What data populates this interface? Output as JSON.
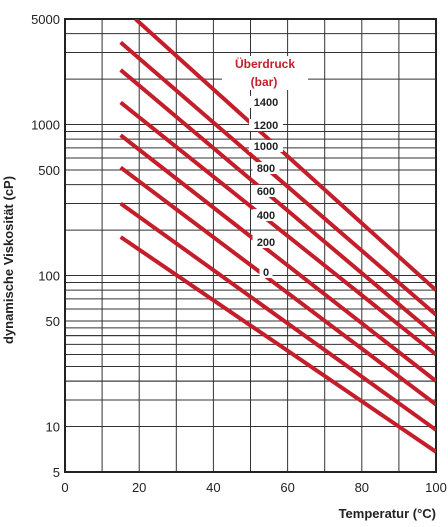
{
  "chart_data": {
    "type": "line",
    "title": "",
    "xlabel": "Temperatur (°C)",
    "ylabel": "dynamische Viskosität (cP)",
    "xlim": [
      0,
      100
    ],
    "ylim": [
      5,
      5000
    ],
    "yscale": "log",
    "grid": true,
    "x_ticks": [
      "0",
      "20",
      "40",
      "60",
      "80",
      "100"
    ],
    "y_ticks": [
      {
        "value": 5000,
        "label": "5000"
      },
      {
        "value": 1000,
        "label": "1000"
      },
      {
        "value": 500,
        "label": "500"
      },
      {
        "value": 100,
        "label": "100"
      },
      {
        "value": 50,
        "label": "50"
      },
      {
        "value": 10,
        "label": "10"
      },
      {
        "value": 5,
        "label": "5"
      }
    ],
    "annotation": {
      "line1": "Überdruck",
      "line2": "(bar)",
      "color": "#c41e2a"
    },
    "line_color": "#c41e2a",
    "series": [
      {
        "name": "0",
        "x": [
          15,
          100
        ],
        "y": [
          180,
          6.8
        ]
      },
      {
        "name": "200",
        "x": [
          15,
          100
        ],
        "y": [
          300,
          9.5
        ]
      },
      {
        "name": "400",
        "x": [
          15,
          100
        ],
        "y": [
          520,
          14
        ]
      },
      {
        "name": "600",
        "x": [
          15,
          100
        ],
        "y": [
          850,
          20
        ]
      },
      {
        "name": "800",
        "x": [
          15,
          100
        ],
        "y": [
          1400,
          30
        ]
      },
      {
        "name": "1000",
        "x": [
          15,
          100
        ],
        "y": [
          2300,
          40
        ]
      },
      {
        "name": "1200",
        "x": [
          15,
          100
        ],
        "y": [
          3500,
          55
        ]
      },
      {
        "name": "1400",
        "x": [
          19,
          100
        ],
        "y": [
          5000,
          80
        ]
      }
    ]
  }
}
